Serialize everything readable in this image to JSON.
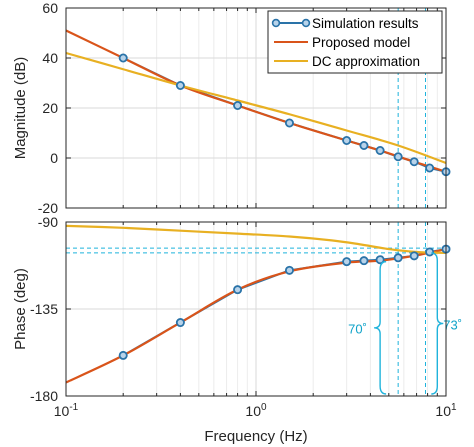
{
  "chart_data": [
    {
      "type": "line",
      "panel": "magnitude",
      "xlabel": "",
      "ylabel": "Magnitude (dB)",
      "xscale": "log",
      "xlim": [
        0.1,
        10
      ],
      "ylim": [
        -20,
        60
      ],
      "yticks": [
        -20,
        0,
        20,
        40,
        60
      ],
      "grid": true,
      "legend": {
        "placement": "top-right",
        "entries": [
          "Simulation results",
          "Proposed model",
          "DC approximation"
        ]
      },
      "series": [
        {
          "name": "Simulation results",
          "color": "#2a73a8",
          "marker": "circle",
          "x": [
            0.2,
            0.4,
            0.8,
            1.5,
            3.0,
            3.7,
            4.5,
            5.6,
            6.8,
            8.2,
            10.0
          ],
          "y": [
            40,
            29,
            21,
            14,
            7,
            5,
            3,
            0.5,
            -1.5,
            -4,
            -5.5
          ]
        },
        {
          "name": "Proposed model",
          "color": "#d9541a",
          "x": [
            0.1,
            0.2,
            0.4,
            0.8,
            1.5,
            3.0,
            4.5,
            6.8,
            10.0
          ],
          "y": [
            51,
            40,
            29,
            21,
            14,
            7,
            3,
            -1.5,
            -5.5
          ]
        },
        {
          "name": "DC approximation",
          "color": "#e8b022",
          "x": [
            0.1,
            0.2,
            0.4,
            0.8,
            1.5,
            3.0,
            5.6,
            10.0
          ],
          "y": [
            42,
            35.5,
            29,
            23,
            17.5,
            11,
            5,
            -2
          ]
        }
      ]
    },
    {
      "type": "line",
      "panel": "phase",
      "xlabel": "Frequency  (Hz)",
      "ylabel": "Phase (deg)",
      "xscale": "log",
      "xlim": [
        0.1,
        10
      ],
      "ylim": [
        -180,
        -90
      ],
      "yticks": [
        -180,
        -135,
        -90
      ],
      "xticks": [
        "10^-1",
        "10^0",
        "10^1"
      ],
      "grid": true,
      "series": [
        {
          "name": "Simulation results",
          "color": "#2a73a8",
          "marker": "circle",
          "x": [
            0.2,
            0.4,
            0.8,
            1.5,
            3.0,
            3.7,
            4.5,
            5.6,
            6.8,
            8.2,
            10.0
          ],
          "y": [
            -159,
            -142,
            -125,
            -115,
            -110.5,
            -110,
            -109.5,
            -108.5,
            -107.5,
            -105.5,
            -104
          ]
        },
        {
          "name": "Proposed model",
          "color": "#d9541a",
          "x": [
            0.1,
            0.2,
            0.4,
            0.8,
            1.5,
            3.0,
            4.5,
            6.8,
            10.0
          ],
          "y": [
            -173,
            -159,
            -142,
            -125,
            -115.5,
            -111,
            -110,
            -107.5,
            -104
          ]
        },
        {
          "name": "DC approximation",
          "color": "#e8b022",
          "x": [
            0.1,
            0.2,
            0.4,
            0.8,
            1.5,
            2.5,
            3.5,
            5.0,
            7.0,
            10.0
          ],
          "y": [
            -92,
            -93,
            -94.5,
            -96,
            -97.5,
            -99.5,
            -101.5,
            -104,
            -105.5,
            -106
          ]
        }
      ],
      "annotations": [
        {
          "text": "70˚",
          "color": "#0fa3c9"
        },
        {
          "text": "73˚",
          "color": "#0fa3c9"
        }
      ]
    }
  ]
}
